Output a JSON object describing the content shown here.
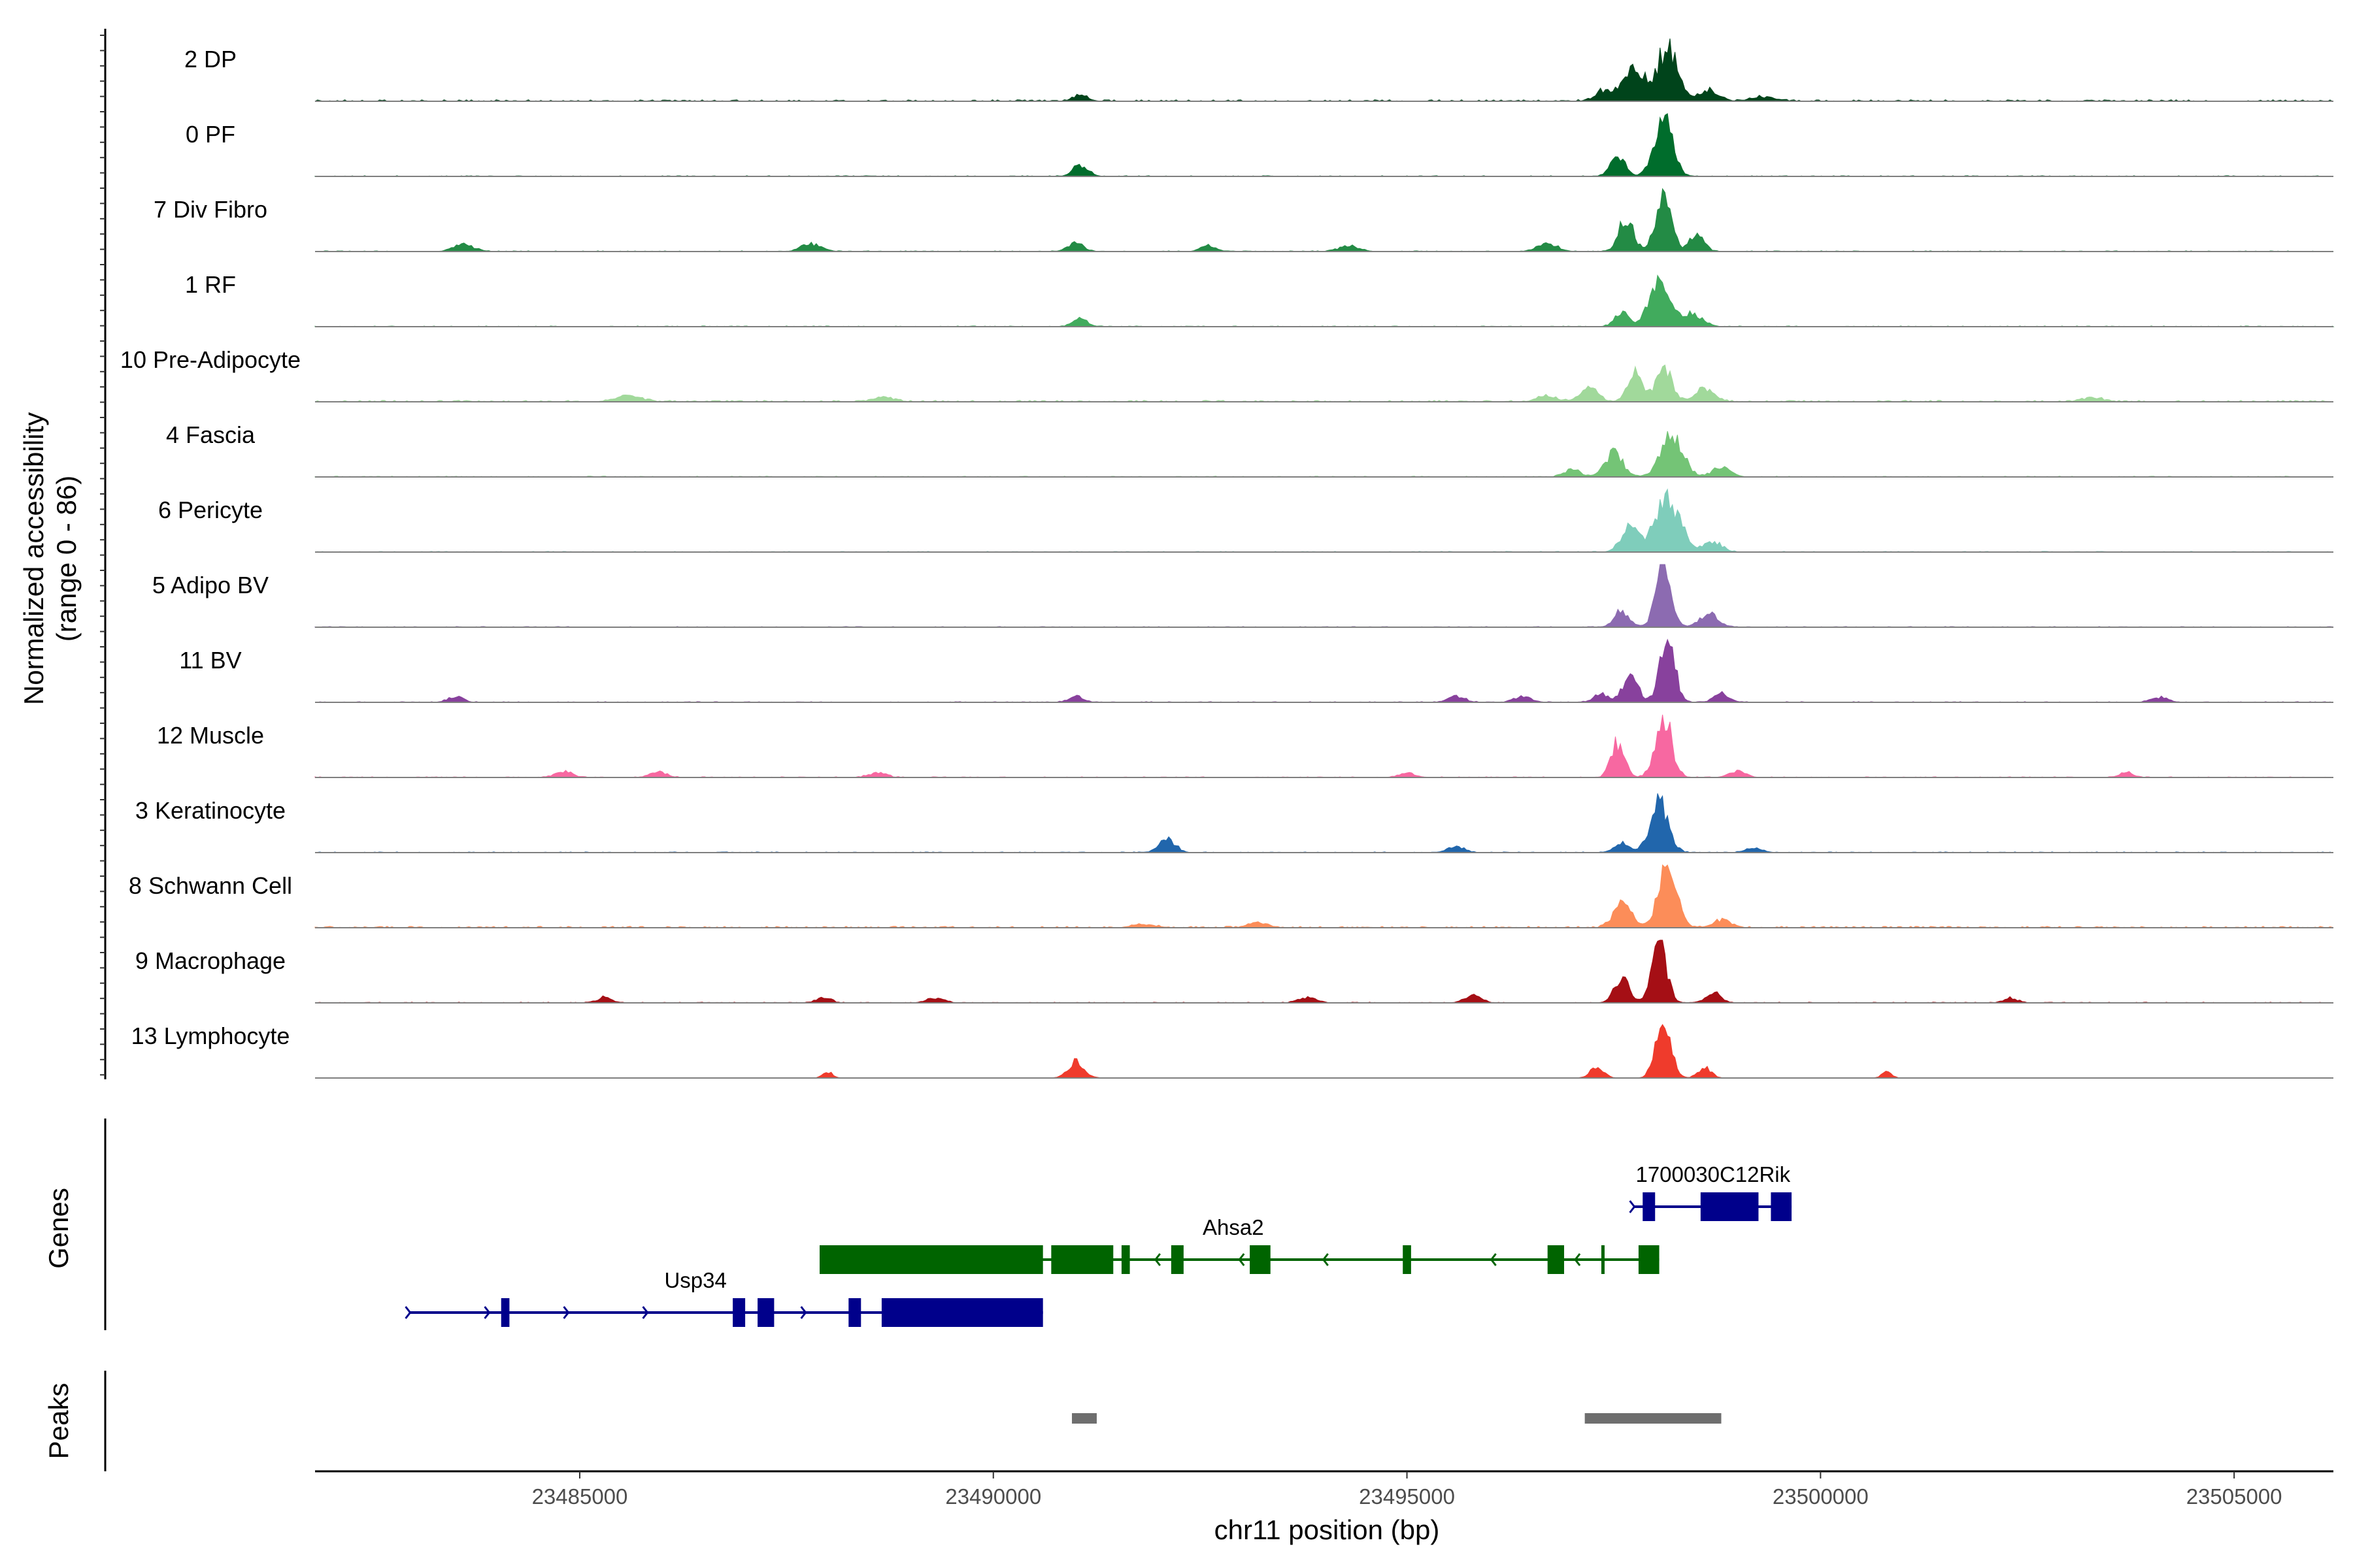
{
  "chart_data": {
    "type": "area",
    "chromosome": "chr11",
    "xlabel": "chr11 position (bp)",
    "ylabel_line1": "Normalized accessibility",
    "ylabel_line2": "(range 0 - 86)",
    "ylim": [
      0,
      86
    ],
    "xlim": [
      23481800,
      23506200
    ],
    "x_ticks": [
      23485000,
      23490000,
      23495000,
      23500000,
      23505000
    ],
    "x_tick_labels": [
      "23485000",
      "23490000",
      "23495000",
      "23500000",
      "23505000"
    ],
    "panel_labels": {
      "genes": "Genes",
      "peaks": "Peaks"
    },
    "tracks": [
      {
        "name": "2 DP",
        "color": "#00441b",
        "base": 2,
        "peaks": [
          [
            23498150,
            120,
            72
          ],
          [
            23497750,
            140,
            40
          ],
          [
            23497400,
            120,
            14
          ],
          [
            23498650,
            120,
            14
          ],
          [
            23499300,
            150,
            6
          ],
          [
            23491050,
            90,
            9
          ]
        ]
      },
      {
        "name": "0 PF",
        "color": "#006d2c",
        "base": 1,
        "peaks": [
          [
            23498100,
            110,
            78
          ],
          [
            23497550,
            90,
            28
          ],
          [
            23491050,
            90,
            16
          ]
        ]
      },
      {
        "name": "7 Div Fibro",
        "color": "#238b45",
        "base": 1,
        "peaks": [
          [
            23498100,
            90,
            85
          ],
          [
            23497650,
            90,
            45
          ],
          [
            23498500,
            90,
            22
          ],
          [
            23483600,
            120,
            10
          ],
          [
            23487800,
            120,
            10
          ],
          [
            23491000,
            90,
            12
          ],
          [
            23492600,
            90,
            8
          ],
          [
            23494300,
            120,
            8
          ],
          [
            23496700,
            120,
            10
          ]
        ]
      },
      {
        "name": "1 RF",
        "color": "#41ab5d",
        "base": 1,
        "peaks": [
          [
            23498050,
            120,
            62
          ],
          [
            23497600,
            90,
            18
          ],
          [
            23498450,
            120,
            18
          ],
          [
            23491050,
            90,
            11
          ]
        ]
      },
      {
        "name": "10 Pre-Adipocyte",
        "color": "#a1d99b",
        "base": 2,
        "peaks": [
          [
            23498100,
            90,
            52
          ],
          [
            23497750,
            90,
            40
          ],
          [
            23498600,
            120,
            18
          ],
          [
            23497200,
            100,
            20
          ],
          [
            23496700,
            120,
            8
          ],
          [
            23485600,
            150,
            8
          ],
          [
            23488700,
            120,
            6
          ],
          [
            23503300,
            120,
            6
          ]
        ]
      },
      {
        "name": "4 Fascia",
        "color": "#74c476",
        "base": 1,
        "peaks": [
          [
            23498200,
            130,
            62
          ],
          [
            23497500,
            110,
            32
          ],
          [
            23498800,
            110,
            12
          ],
          [
            23497000,
            100,
            10
          ]
        ]
      },
      {
        "name": "6 Pericyte",
        "color": "#7fcdbb",
        "base": 1,
        "peaks": [
          [
            23498150,
            150,
            70
          ],
          [
            23497700,
            110,
            32
          ],
          [
            23498700,
            110,
            14
          ]
        ]
      },
      {
        "name": "5 Adipo BV",
        "color": "#8c6bb1",
        "base": 1,
        "peaks": [
          [
            23498100,
            90,
            82
          ],
          [
            23497600,
            90,
            22
          ],
          [
            23498650,
            110,
            18
          ]
        ]
      },
      {
        "name": "11 BV",
        "color": "#88419d",
        "base": 1,
        "peaks": [
          [
            23498150,
            90,
            84
          ],
          [
            23497700,
            90,
            38
          ],
          [
            23497350,
            90,
            12
          ],
          [
            23498800,
            90,
            12
          ],
          [
            23483500,
            90,
            8
          ],
          [
            23491000,
            90,
            8
          ],
          [
            23495600,
            100,
            8
          ],
          [
            23496400,
            100,
            8
          ],
          [
            23504100,
            100,
            7
          ]
        ]
      },
      {
        "name": "12 Muscle",
        "color": "#f768a1",
        "base": 1,
        "peaks": [
          [
            23498100,
            100,
            82
          ],
          [
            23497550,
            80,
            48
          ],
          [
            23484800,
            100,
            8
          ],
          [
            23485950,
            100,
            8
          ],
          [
            23488600,
            100,
            7
          ],
          [
            23495000,
            100,
            6
          ],
          [
            23499000,
            100,
            8
          ],
          [
            23503700,
            80,
            7
          ]
        ]
      },
      {
        "name": "3 Keratinocyte",
        "color": "#2166ac",
        "base": 1,
        "peaks": [
          [
            23498050,
            110,
            68
          ],
          [
            23497600,
            90,
            14
          ],
          [
            23492100,
            100,
            18
          ],
          [
            23495600,
            100,
            8
          ],
          [
            23499200,
            100,
            6
          ]
        ]
      },
      {
        "name": "8 Schwann Cell",
        "color": "#fc8d59",
        "base": 2,
        "peaks": [
          [
            23498150,
            110,
            80
          ],
          [
            23497600,
            110,
            32
          ],
          [
            23498800,
            110,
            10
          ],
          [
            23493200,
            120,
            7
          ],
          [
            23491800,
            120,
            5
          ]
        ]
      },
      {
        "name": "9 Macrophage",
        "color": "#a50f15",
        "base": 1,
        "peaks": [
          [
            23498050,
            90,
            78
          ],
          [
            23497600,
            90,
            32
          ],
          [
            23498700,
            90,
            14
          ],
          [
            23485300,
            80,
            8
          ],
          [
            23487950,
            80,
            8
          ],
          [
            23489300,
            100,
            7
          ],
          [
            23493800,
            100,
            8
          ],
          [
            23495800,
            100,
            10
          ],
          [
            23502300,
            80,
            7
          ]
        ]
      },
      {
        "name": "13 Lymphocyte",
        "color": "#ef3b2c",
        "base": 0,
        "peaks": [
          [
            23498100,
            90,
            86
          ],
          [
            23497300,
            80,
            16
          ],
          [
            23498600,
            80,
            14
          ],
          [
            23491000,
            100,
            22
          ],
          [
            23488000,
            60,
            8
          ],
          [
            23500800,
            60,
            8
          ]
        ]
      }
    ],
    "genes": [
      {
        "name": "1700030C12Rik",
        "strand": "+",
        "color": "#00008b",
        "row": 0,
        "start": 23497750,
        "end": 23499650,
        "exons": [
          [
            23497850,
            23498000
          ],
          [
            23498550,
            23499250
          ],
          [
            23499400,
            23499650
          ]
        ]
      },
      {
        "name": "Ahsa2",
        "strand": "-",
        "color": "#006400",
        "row": 1,
        "start": 23487900,
        "end": 23498050,
        "exons": [
          [
            23487900,
            23490600
          ],
          [
            23490700,
            23491450
          ],
          [
            23491550,
            23491650
          ],
          [
            23492150,
            23492300
          ],
          [
            23493100,
            23493350
          ],
          [
            23494950,
            23495050
          ],
          [
            23496700,
            23496900
          ],
          [
            23497350,
            23497380
          ],
          [
            23497800,
            23498050
          ]
        ]
      },
      {
        "name": "Usp34",
        "strand": "+",
        "color": "#00008b",
        "row": 2,
        "start": 23482950,
        "end": 23490600,
        "exons": [
          [
            23484050,
            23484150
          ],
          [
            23486850,
            23487000
          ],
          [
            23487150,
            23487350
          ],
          [
            23488250,
            23488400
          ],
          [
            23488650,
            23490600
          ]
        ]
      }
    ],
    "gene_label_positions": {
      "1700030C12Rik": 23498700,
      "Ahsa2": 23492900,
      "Usp34": 23486400
    },
    "peak_regions": [
      [
        23490950,
        23491250
      ],
      [
        23497150,
        23498800
      ]
    ]
  }
}
